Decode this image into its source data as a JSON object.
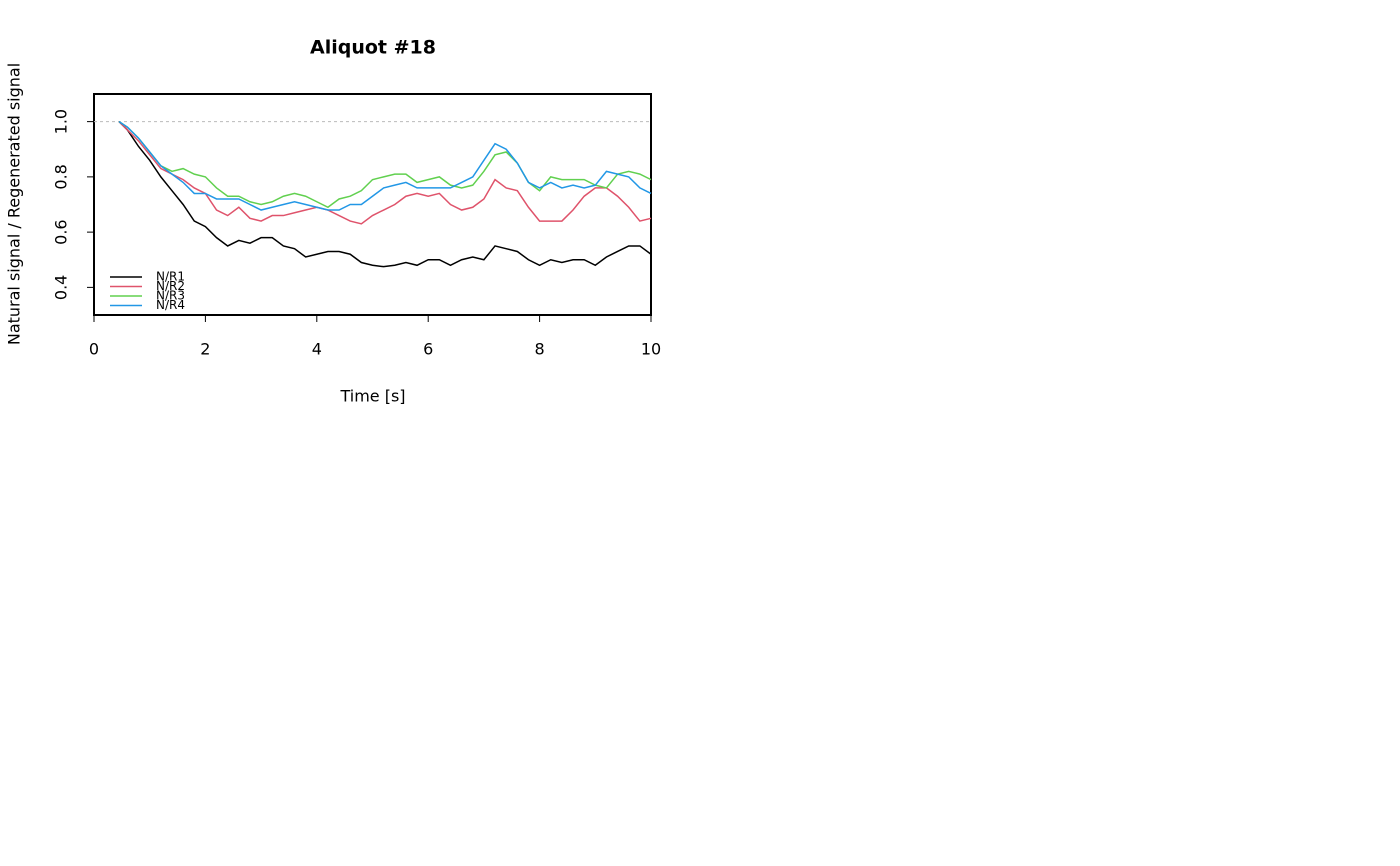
{
  "chart_data": {
    "type": "line",
    "title": "Aliquot #18",
    "x_label": "Time [s]",
    "y_label": "Natural signal / Regenerated signal",
    "x": [
      0.45,
      0.6,
      0.8,
      1.0,
      1.2,
      1.4,
      1.6,
      1.8,
      2.0,
      2.2,
      2.4,
      2.6,
      2.8,
      3.0,
      3.2,
      3.4,
      3.6,
      3.8,
      4.0,
      4.2,
      4.4,
      4.6,
      4.8,
      5.0,
      5.2,
      5.4,
      5.6,
      5.8,
      6.0,
      6.2,
      6.4,
      6.6,
      6.8,
      7.0,
      7.2,
      7.4,
      7.6,
      7.8,
      8.0,
      8.2,
      8.4,
      8.6,
      8.8,
      9.0,
      9.2,
      9.4,
      9.6,
      9.8,
      10.0
    ],
    "series": [
      {
        "name": "N/R1",
        "color": "#000000",
        "values": [
          1.0,
          0.97,
          0.91,
          0.86,
          0.8,
          0.75,
          0.7,
          0.64,
          0.62,
          0.58,
          0.55,
          0.57,
          0.56,
          0.58,
          0.58,
          0.55,
          0.54,
          0.51,
          0.52,
          0.53,
          0.53,
          0.52,
          0.49,
          0.48,
          0.475,
          0.48,
          0.49,
          0.48,
          0.5,
          0.5,
          0.48,
          0.5,
          0.51,
          0.5,
          0.55,
          0.54,
          0.53,
          0.5,
          0.48,
          0.5,
          0.49,
          0.5,
          0.5,
          0.48,
          0.51,
          0.53,
          0.55,
          0.55,
          0.52
        ]
      },
      {
        "name": "N/R2",
        "color": "#DF536B",
        "values": [
          1.0,
          0.97,
          0.93,
          0.88,
          0.83,
          0.81,
          0.79,
          0.76,
          0.74,
          0.68,
          0.66,
          0.69,
          0.65,
          0.64,
          0.66,
          0.66,
          0.67,
          0.68,
          0.69,
          0.68,
          0.66,
          0.64,
          0.63,
          0.66,
          0.68,
          0.7,
          0.73,
          0.74,
          0.73,
          0.74,
          0.7,
          0.68,
          0.69,
          0.72,
          0.79,
          0.76,
          0.75,
          0.69,
          0.64,
          0.64,
          0.64,
          0.68,
          0.73,
          0.76,
          0.76,
          0.73,
          0.69,
          0.64,
          0.65
        ]
      },
      {
        "name": "N/R3",
        "color": "#61D04F",
        "values": [
          1.0,
          0.98,
          0.94,
          0.89,
          0.84,
          0.82,
          0.83,
          0.81,
          0.8,
          0.76,
          0.73,
          0.73,
          0.71,
          0.7,
          0.71,
          0.73,
          0.74,
          0.73,
          0.71,
          0.69,
          0.72,
          0.73,
          0.75,
          0.79,
          0.8,
          0.81,
          0.81,
          0.78,
          0.79,
          0.8,
          0.77,
          0.76,
          0.77,
          0.82,
          0.88,
          0.89,
          0.85,
          0.78,
          0.75,
          0.8,
          0.79,
          0.79,
          0.79,
          0.77,
          0.76,
          0.81,
          0.82,
          0.81,
          0.79
        ]
      },
      {
        "name": "N/R4",
        "color": "#2297E6",
        "values": [
          1.0,
          0.98,
          0.94,
          0.89,
          0.84,
          0.81,
          0.78,
          0.74,
          0.74,
          0.72,
          0.72,
          0.72,
          0.7,
          0.68,
          0.69,
          0.7,
          0.71,
          0.7,
          0.69,
          0.68,
          0.68,
          0.7,
          0.7,
          0.73,
          0.76,
          0.77,
          0.78,
          0.76,
          0.76,
          0.76,
          0.76,
          0.78,
          0.8,
          0.86,
          0.92,
          0.9,
          0.85,
          0.78,
          0.76,
          0.78,
          0.76,
          0.77,
          0.76,
          0.77,
          0.82,
          0.81,
          0.8,
          0.76,
          0.74
        ]
      }
    ],
    "reference_line": 1.0,
    "xlim": [
      0,
      10
    ],
    "xticks": [
      0,
      2,
      4,
      6,
      8,
      10
    ],
    "ylim": [
      0.3,
      1.1
    ],
    "yticks": [
      0.4,
      0.6,
      0.8,
      {
        "value": 1.0,
        "label": "1.0"
      }
    ],
    "legend": "bottom-left"
  }
}
